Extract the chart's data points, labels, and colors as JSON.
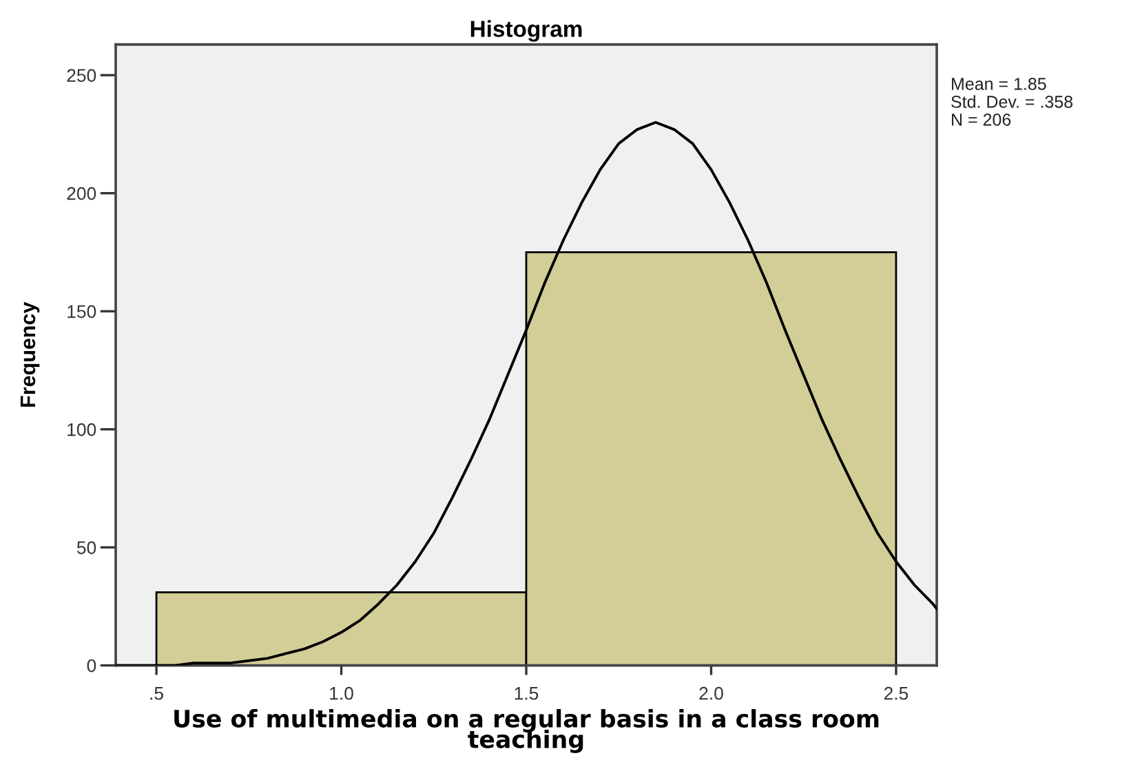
{
  "chart_data": {
    "type": "histogram",
    "title": "Histogram",
    "xlabel": "Use of multimedia on a regular basis in a class room teaching",
    "ylabel": "Frequency",
    "annotations": [
      "Mean = 1.85",
      "Std. Dev. = .358",
      "N = 206"
    ],
    "xlim": [
      0.39,
      2.61
    ],
    "ylim": [
      0,
      263
    ],
    "xticks": [
      {
        "value": 0.5,
        "label": ".5"
      },
      {
        "value": 1.0,
        "label": "1.0"
      },
      {
        "value": 1.5,
        "label": "1.5"
      },
      {
        "value": 2.0,
        "label": "2.0"
      },
      {
        "value": 2.5,
        "label": "2.5"
      }
    ],
    "yticks": [
      0,
      50,
      100,
      150,
      200,
      250
    ],
    "series": [
      {
        "type": "histogram",
        "bins": [
          0.5,
          1.5,
          2.5
        ],
        "values": [
          31,
          175
        ],
        "color": "#d3ce97"
      },
      {
        "type": "line",
        "color": "#000000",
        "x": [
          0.39,
          0.45,
          0.5,
          0.55,
          0.6,
          0.65,
          0.7,
          0.75,
          0.8,
          0.85,
          0.9,
          0.95,
          1.0,
          1.05,
          1.1,
          1.15,
          1.2,
          1.25,
          1.3,
          1.35,
          1.4,
          1.45,
          1.5,
          1.55,
          1.6,
          1.65,
          1.7,
          1.75,
          1.8,
          1.85,
          1.9,
          1.95,
          2.0,
          2.05,
          2.1,
          2.15,
          2.2,
          2.25,
          2.3,
          2.35,
          2.4,
          2.45,
          2.5,
          2.55,
          2.6,
          2.61
        ],
        "values": [
          0,
          0,
          0,
          0,
          1,
          1,
          1,
          2,
          3,
          5,
          7,
          10,
          14,
          19,
          26,
          34,
          44,
          56,
          71,
          87,
          104,
          123,
          142,
          162,
          180,
          196,
          210,
          221,
          227,
          230,
          227,
          221,
          210,
          196,
          180,
          162,
          142,
          123,
          104,
          87,
          71,
          56,
          44,
          34,
          26,
          24
        ]
      }
    ]
  }
}
